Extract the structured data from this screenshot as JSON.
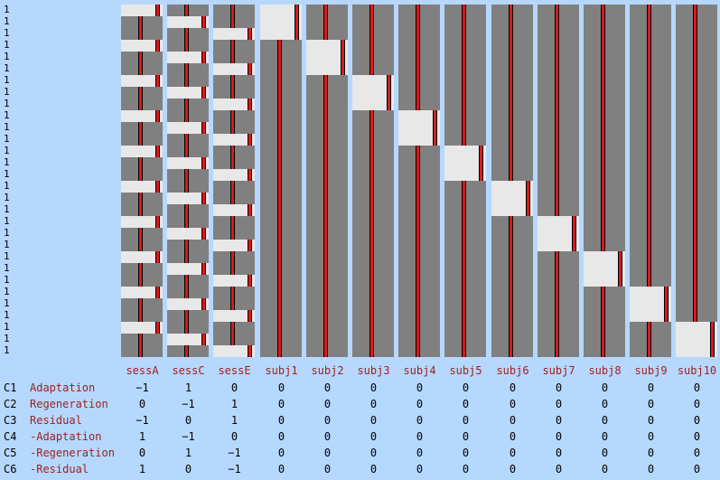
{
  "row_labels": [
    "1",
    "1",
    "1",
    "1",
    "1",
    "1",
    "1",
    "1",
    "1",
    "1",
    "1",
    "1",
    "1",
    "1",
    "1",
    "1",
    "1",
    "1",
    "1",
    "1",
    "1",
    "1",
    "1",
    "1",
    "1",
    "1",
    "1",
    "1",
    "1",
    "1"
  ],
  "columns": [
    "sessA",
    "sessC",
    "sessE",
    "subj1",
    "subj2",
    "subj3",
    "subj4",
    "subj5",
    "subj6",
    "subj7",
    "subj8",
    "subj9",
    "subj10"
  ],
  "design_matrix": {
    "rows": 30,
    "session_columns": [
      {
        "name": "sessA",
        "highlight_rows": [
          0,
          3,
          6,
          9,
          12,
          15,
          18,
          21,
          24,
          27
        ],
        "bar_ranges": [
          [
            0,
            1
          ],
          [
            1,
            2
          ],
          [
            2,
            3
          ],
          [
            3,
            4
          ],
          [
            4,
            5
          ],
          [
            5,
            6
          ],
          [
            6,
            7
          ],
          [
            7,
            8
          ],
          [
            8,
            9
          ],
          [
            9,
            10
          ],
          [
            10,
            11
          ],
          [
            11,
            12
          ],
          [
            12,
            13
          ],
          [
            13,
            14
          ],
          [
            14,
            15
          ],
          [
            15,
            16
          ],
          [
            16,
            17
          ],
          [
            17,
            18
          ],
          [
            18,
            19
          ],
          [
            19,
            20
          ],
          [
            20,
            21
          ],
          [
            21,
            22
          ],
          [
            22,
            23
          ],
          [
            23,
            24
          ],
          [
            24,
            25
          ],
          [
            25,
            26
          ],
          [
            26,
            27
          ],
          [
            27,
            28
          ],
          [
            28,
            29
          ],
          [
            29,
            30
          ]
        ]
      },
      {
        "name": "sessC",
        "highlight_rows": [
          1,
          4,
          7,
          10,
          13,
          16,
          19,
          22,
          25,
          28
        ]
      },
      {
        "name": "sessE",
        "highlight_rows": [
          2,
          5,
          8,
          11,
          14,
          17,
          20,
          23,
          26,
          29
        ]
      }
    ],
    "subject_columns": [
      {
        "name": "subj1",
        "highlight_start": 0,
        "highlight_end": 3
      },
      {
        "name": "subj2",
        "highlight_start": 3,
        "highlight_end": 6
      },
      {
        "name": "subj3",
        "highlight_start": 6,
        "highlight_end": 9
      },
      {
        "name": "subj4",
        "highlight_start": 9,
        "highlight_end": 12
      },
      {
        "name": "subj5",
        "highlight_start": 12,
        "highlight_end": 15
      },
      {
        "name": "subj6",
        "highlight_start": 15,
        "highlight_end": 18
      },
      {
        "name": "subj7",
        "highlight_start": 18,
        "highlight_end": 21
      },
      {
        "name": "subj8",
        "highlight_start": 21,
        "highlight_end": 24
      },
      {
        "name": "subj9",
        "highlight_start": 24,
        "highlight_end": 27
      },
      {
        "name": "subj10",
        "highlight_start": 27,
        "highlight_end": 30
      }
    ]
  },
  "contrasts": [
    {
      "id": "C1",
      "label": "Adaptation",
      "values": [
        "−1",
        "1",
        "0",
        "0",
        "0",
        "0",
        "0",
        "0",
        "0",
        "0",
        "0",
        "0",
        "0"
      ]
    },
    {
      "id": "C2",
      "label": "Regeneration",
      "values": [
        "0",
        "−1",
        "1",
        "0",
        "0",
        "0",
        "0",
        "0",
        "0",
        "0",
        "0",
        "0",
        "0"
      ]
    },
    {
      "id": "C3",
      "label": "Residual",
      "values": [
        "−1",
        "0",
        "1",
        "0",
        "0",
        "0",
        "0",
        "0",
        "0",
        "0",
        "0",
        "0",
        "0"
      ]
    },
    {
      "id": "C4",
      "label": "-Adaptation",
      "values": [
        "1",
        "−1",
        "0",
        "0",
        "0",
        "0",
        "0",
        "0",
        "0",
        "0",
        "0",
        "0",
        "0"
      ]
    },
    {
      "id": "C5",
      "label": "-Regeneration",
      "values": [
        "0",
        "1",
        "−1",
        "0",
        "0",
        "0",
        "0",
        "0",
        "0",
        "0",
        "0",
        "0",
        "0"
      ]
    },
    {
      "id": "C6",
      "label": "-Residual",
      "values": [
        "1",
        "0",
        "−1",
        "0",
        "0",
        "0",
        "0",
        "0",
        "0",
        "0",
        "0",
        "0",
        "0"
      ]
    }
  ],
  "colors": {
    "background": "#b6d8fe",
    "column_fill": "#808080",
    "highlight": "#e8e8e8",
    "bar": "#d81a1a",
    "label": "#a02020"
  }
}
